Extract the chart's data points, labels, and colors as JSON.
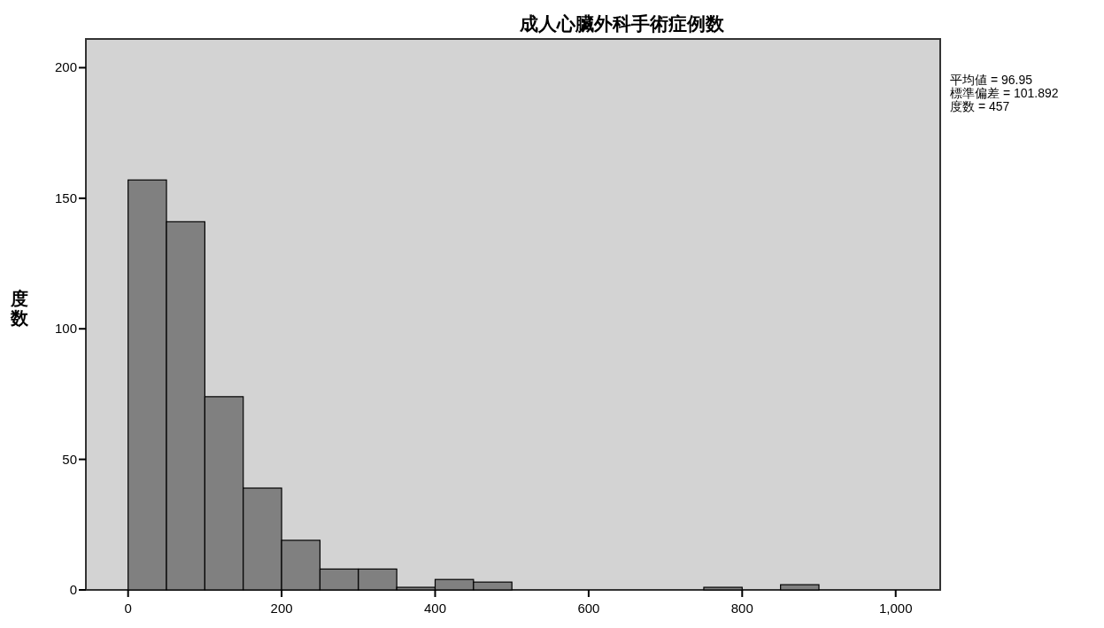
{
  "chart_data": {
    "type": "histogram",
    "title": "成人心臟外科手術症例数",
    "ylabel": "度数",
    "bins": [
      0,
      50,
      100,
      150,
      200,
      250,
      300,
      350,
      400,
      450,
      500,
      550,
      600,
      650,
      700,
      750,
      800,
      850,
      900
    ],
    "values": [
      157,
      141,
      74,
      39,
      19,
      8,
      8,
      1,
      4,
      3,
      0,
      0,
      0,
      0,
      0,
      1,
      0,
      2
    ],
    "color": "#808080",
    "xlim": [
      -55,
      1058
    ],
    "xticks": [
      0,
      200,
      400,
      600,
      800,
      {
        "value": 1000,
        "label": "1,000"
      }
    ],
    "ylim": [
      0,
      211
    ],
    "yticks": [
      0,
      50,
      100,
      150,
      200
    ],
    "annotations": [
      "平均値 = 96.95",
      "標準偏差 = 101.892",
      "度数 = 457"
    ],
    "grid": false
  }
}
